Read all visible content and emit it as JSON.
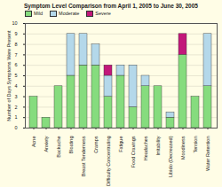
{
  "chart_data": {
    "type": "bar",
    "title": "Symptom Level Comparison from April 1, 2005 to June 30, 2005",
    "y_label": "Number of Days Symptoms Were Present",
    "categories": [
      "Acne",
      "Anxiety",
      "Backache",
      "Bloating",
      "Breast Tenderness",
      "Cramps",
      "Difficulty Concentrating",
      "Fatigue",
      "Food Cravings",
      "Headaches",
      "Irritability",
      "Libido (Decreased)",
      "Moodiness",
      "Tension",
      "Water Retention"
    ],
    "series": [
      {
        "name": "Mild",
        "color": "#86dc7e",
        "values": [
          3,
          1,
          4,
          5,
          6,
          6,
          3,
          5,
          2,
          4,
          4,
          1,
          7,
          3,
          4
        ]
      },
      {
        "name": "Moderate",
        "color": "#b4d8ea",
        "values": [
          0,
          0,
          0,
          4,
          3,
          2,
          2,
          1,
          4,
          1,
          0,
          0.5,
          0,
          0,
          5
        ]
      },
      {
        "name": "Severe",
        "color": "#c2187a",
        "values": [
          0,
          0,
          0,
          0,
          0,
          0,
          1,
          0,
          0,
          0,
          0,
          0,
          2,
          0,
          0
        ]
      }
    ],
    "stacked": true,
    "legend": "top",
    "grid": true,
    "ylim": [
      0,
      10
    ],
    "yticks": [
      0,
      1,
      2,
      3,
      4,
      5,
      6,
      7,
      8,
      9,
      10
    ]
  }
}
